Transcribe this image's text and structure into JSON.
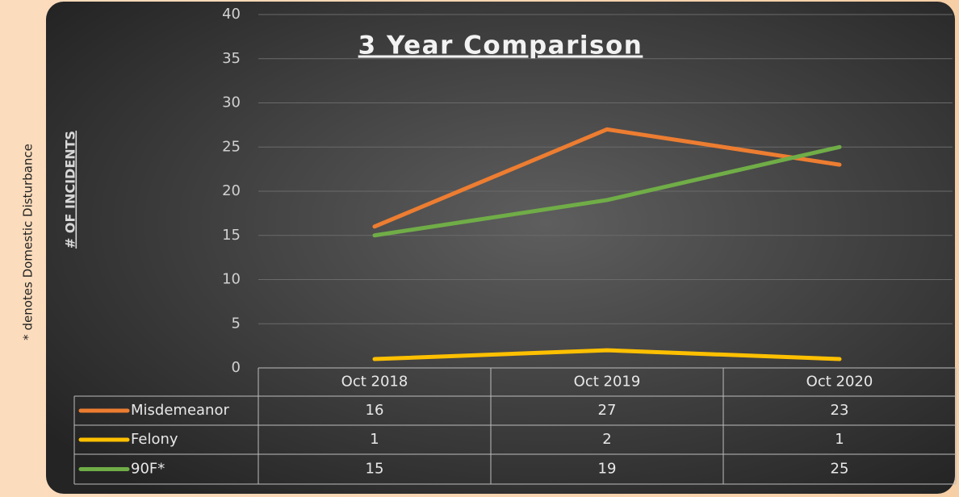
{
  "chart_data": {
    "type": "line",
    "title": "3 Year Comparison",
    "y_label": "# OF INCIDENTS",
    "annotation": "* denotes Domestic Disturbance",
    "categories": [
      "Oct 2018",
      "Oct 2019",
      "Oct 2020"
    ],
    "series": [
      {
        "name": "Misdemeanor",
        "color": "#ed7d31",
        "values": [
          16,
          27,
          23
        ]
      },
      {
        "name": "Felony",
        "color": "#ffc000",
        "values": [
          1,
          2,
          1
        ]
      },
      {
        "name": "90F*",
        "color": "#70ad47",
        "values": [
          15,
          19,
          25
        ]
      }
    ],
    "ylim": [
      0,
      40
    ],
    "yticks": [
      0,
      5,
      10,
      15,
      20,
      25,
      30,
      35,
      40
    ],
    "grid": true,
    "data_table": true
  }
}
